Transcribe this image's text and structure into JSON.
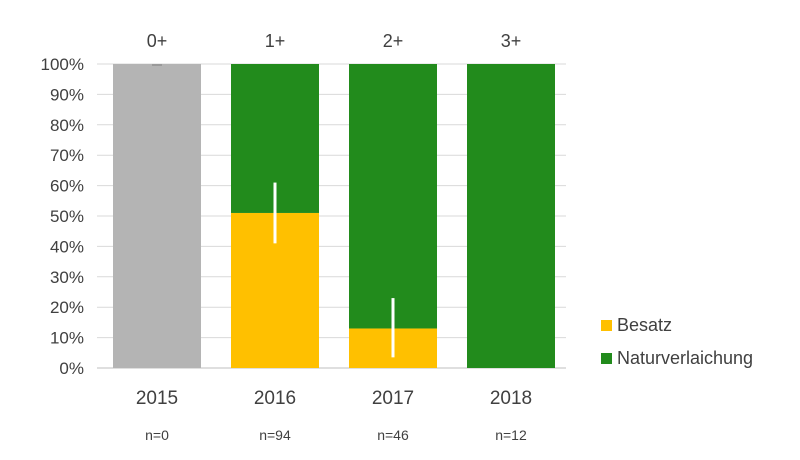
{
  "chart_data": {
    "type": "bar",
    "stacked": true,
    "categories": [
      "2015",
      "2016",
      "2017",
      "2018"
    ],
    "top_labels": [
      "0+",
      "1+",
      "2+",
      "3+"
    ],
    "sample_sizes": [
      "n=0",
      "n=94",
      "n=46",
      "n=12"
    ],
    "series": [
      {
        "name": "Besatz",
        "color": "#FFC000",
        "values": [
          0,
          51,
          13,
          0
        ]
      },
      {
        "name": "Naturverlaichung",
        "color": "#228B1C",
        "values": [
          0,
          49,
          87,
          100
        ]
      }
    ],
    "placeholder": {
      "category": "2015",
      "value": 100,
      "color": "#B4B4B4"
    },
    "error_bars": [
      {
        "category": "2016",
        "low": 41,
        "high": 61
      },
      {
        "category": "2017",
        "low": 3.5,
        "high": 23
      }
    ],
    "ylim": [
      0,
      100
    ],
    "yticks": [
      "0%",
      "10%",
      "20%",
      "30%",
      "40%",
      "50%",
      "60%",
      "70%",
      "80%",
      "90%",
      "100%"
    ],
    "grid": true,
    "legend": "right",
    "legend_entries": [
      "Besatz",
      "Naturverlaichung"
    ],
    "xlabel": "",
    "ylabel": "",
    "title": ""
  }
}
